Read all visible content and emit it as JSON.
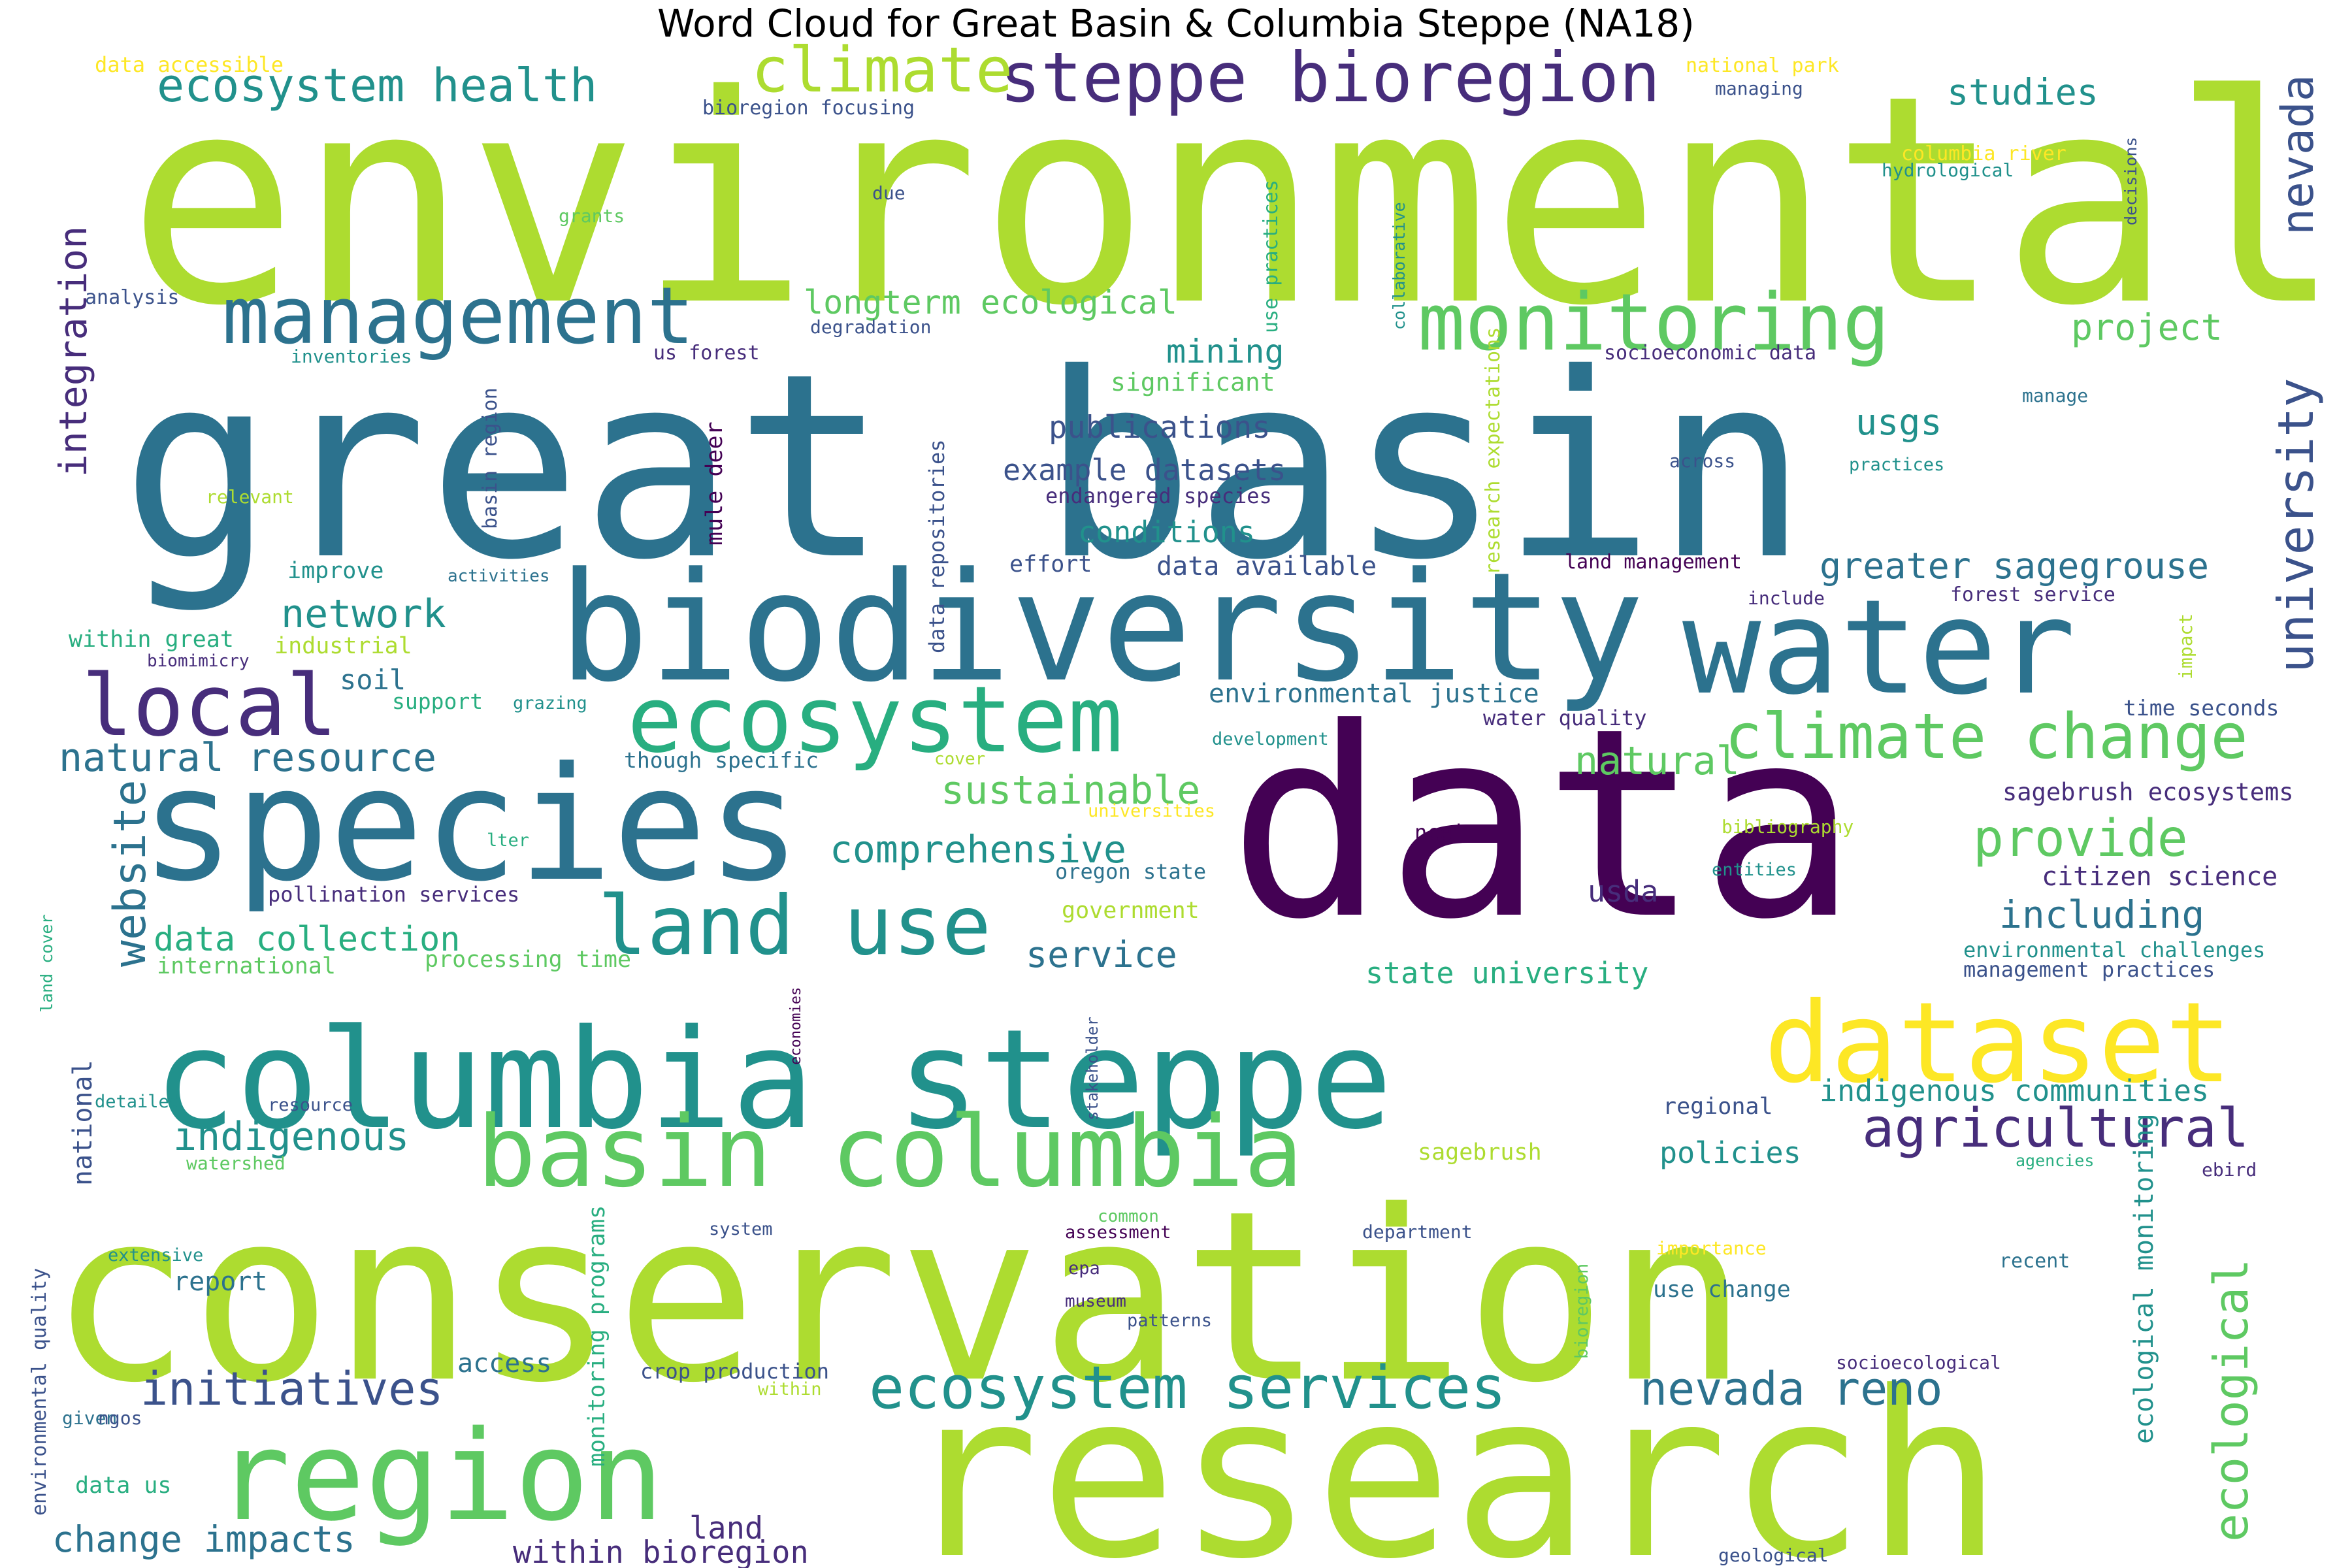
{
  "title": "Word Cloud for Great Basin & Columbia Steppe (NA18)",
  "palette": [
    "#440154",
    "#472d7b",
    "#3b528b",
    "#2c728e",
    "#21918c",
    "#28ae80",
    "#5ec962",
    "#addc30",
    "#fde725"
  ],
  "words": [
    {
      "text": "environmental",
      "c": 7
    },
    {
      "text": "great basin",
      "c": 3
    },
    {
      "text": "data",
      "c": 0
    },
    {
      "text": "conservation",
      "c": 7
    },
    {
      "text": "research",
      "c": 7
    },
    {
      "text": "biodiversity",
      "c": 3
    },
    {
      "text": "species",
      "c": 3
    },
    {
      "text": "columbia steppe",
      "c": 4
    },
    {
      "text": "water",
      "c": 3
    },
    {
      "text": "region",
      "c": 6
    },
    {
      "text": "dataset",
      "c": 8
    },
    {
      "text": "ecosystem",
      "c": 5
    },
    {
      "text": "basin columbia",
      "c": 6
    },
    {
      "text": "management",
      "c": 3
    },
    {
      "text": "land use",
      "c": 4
    },
    {
      "text": "monitoring",
      "c": 6
    },
    {
      "text": "steppe bioregion",
      "c": 1
    },
    {
      "text": "climate change",
      "c": 6
    },
    {
      "text": "local",
      "c": 1
    },
    {
      "text": "ecosystem services",
      "c": 4
    },
    {
      "text": "climate",
      "c": 7
    },
    {
      "text": "ecosystem health",
      "c": 4
    },
    {
      "text": "agricultural",
      "c": 1
    },
    {
      "text": "university",
      "c": 2
    },
    {
      "text": "nevada",
      "c": 2
    },
    {
      "text": "ecological",
      "c": 6
    },
    {
      "text": "initiatives",
      "c": 2
    },
    {
      "text": "website",
      "c": 3
    },
    {
      "text": "nevada reno",
      "c": 3
    },
    {
      "text": "provide",
      "c": 6
    },
    {
      "text": "integration",
      "c": 1
    },
    {
      "text": "natural resource",
      "c": 3
    },
    {
      "text": "indigenous",
      "c": 4
    },
    {
      "text": "sustainable",
      "c": 6
    },
    {
      "text": "comprehensive",
      "c": 4
    },
    {
      "text": "network",
      "c": 4
    },
    {
      "text": "longterm ecological",
      "c": 6
    },
    {
      "text": "natural",
      "c": 6
    },
    {
      "text": "greater sagegrouse",
      "c": 3
    },
    {
      "text": "change impacts",
      "c": 3
    },
    {
      "text": "including",
      "c": 3
    },
    {
      "text": "studies",
      "c": 4
    },
    {
      "text": "project",
      "c": 6
    },
    {
      "text": "usgs",
      "c": 4
    },
    {
      "text": "publications",
      "c": 2
    },
    {
      "text": "example datasets",
      "c": 2
    },
    {
      "text": "conditions",
      "c": 4
    },
    {
      "text": "indigenous communities",
      "c": 4
    },
    {
      "text": "service",
      "c": 3
    },
    {
      "text": "data collection",
      "c": 5
    },
    {
      "text": "within bioregion",
      "c": 1
    },
    {
      "text": "land",
      "c": 1
    },
    {
      "text": "report",
      "c": 3
    },
    {
      "text": "mining",
      "c": 4
    },
    {
      "text": "policies",
      "c": 4
    },
    {
      "text": "state university",
      "c": 5
    },
    {
      "text": "ecological monitoring",
      "c": 4
    },
    {
      "text": "environmental justice",
      "c": 3
    },
    {
      "text": "data available",
      "c": 2
    },
    {
      "text": "citizen science",
      "c": 1
    },
    {
      "text": "sagebrush ecosystems",
      "c": 1
    },
    {
      "text": "national",
      "c": 2
    },
    {
      "text": "soil",
      "c": 3
    },
    {
      "text": "usda",
      "c": 1
    },
    {
      "text": "access",
      "c": 3
    },
    {
      "text": "significant",
      "c": 6
    },
    {
      "text": "effort",
      "c": 2
    },
    {
      "text": "mule deer",
      "c": 0
    },
    {
      "text": "processing time",
      "c": 6
    },
    {
      "text": "international",
      "c": 6
    },
    {
      "text": "pollination services",
      "c": 1
    },
    {
      "text": "endangered species",
      "c": 1
    },
    {
      "text": "though specific",
      "c": 3
    },
    {
      "text": "regional",
      "c": 2
    },
    {
      "text": "crop production",
      "c": 2
    },
    {
      "text": "use change",
      "c": 3
    },
    {
      "text": "sagebrush",
      "c": 7
    },
    {
      "text": "data us",
      "c": 5
    },
    {
      "text": "monitoring programs",
      "c": 5
    },
    {
      "text": "environmental quality",
      "c": 2
    },
    {
      "text": "government",
      "c": 7
    },
    {
      "text": "oregon state",
      "c": 3
    },
    {
      "text": "ncei",
      "c": 0
    },
    {
      "text": "water quality",
      "c": 1
    },
    {
      "text": "time seconds",
      "c": 2
    },
    {
      "text": "data repositories",
      "c": 2
    },
    {
      "text": "use practices",
      "c": 5
    },
    {
      "text": "research expectations",
      "c": 7
    },
    {
      "text": "environmental challenges",
      "c": 4
    },
    {
      "text": "management practices",
      "c": 2
    },
    {
      "text": "basin region",
      "c": 2
    },
    {
      "text": "land management",
      "c": 0
    },
    {
      "text": "forest service",
      "c": 1
    },
    {
      "text": "socioeconomic data",
      "c": 1
    },
    {
      "text": "us forest",
      "c": 1
    },
    {
      "text": "support",
      "c": 5
    },
    {
      "text": "improve",
      "c": 4
    },
    {
      "text": "industrial",
      "c": 7
    },
    {
      "text": "within great",
      "c": 5
    },
    {
      "text": "data accessible",
      "c": 8
    },
    {
      "text": "bioregion focusing",
      "c": 2
    },
    {
      "text": "national park",
      "c": 8
    },
    {
      "text": "managing",
      "c": 2
    },
    {
      "text": "columbia river",
      "c": 8
    },
    {
      "text": "hydrological",
      "c": 4
    },
    {
      "text": "decisions",
      "c": 2
    },
    {
      "text": "due",
      "c": 2
    },
    {
      "text": "grants",
      "c": 6
    },
    {
      "text": "analysis",
      "c": 2
    },
    {
      "text": "degradation",
      "c": 2
    },
    {
      "text": "inventories",
      "c": 4
    },
    {
      "text": "collaborative",
      "c": 4
    },
    {
      "text": "relevant",
      "c": 7
    },
    {
      "text": "activities",
      "c": 3
    },
    {
      "text": "biomimicry",
      "c": 1
    },
    {
      "text": "grazing",
      "c": 4
    },
    {
      "text": "lter",
      "c": 5
    },
    {
      "text": "land cover",
      "c": 5
    },
    {
      "text": "detailed",
      "c": 4
    },
    {
      "text": "resource",
      "c": 2
    },
    {
      "text": "watershed",
      "c": 6
    },
    {
      "text": "extensive",
      "c": 4
    },
    {
      "text": "given",
      "c": 3
    },
    {
      "text": "ngos",
      "c": 2
    },
    {
      "text": "system",
      "c": 2
    },
    {
      "text": "common",
      "c": 6
    },
    {
      "text": "assessment",
      "c": 0
    },
    {
      "text": "epa",
      "c": 1
    },
    {
      "text": "museum",
      "c": 1
    },
    {
      "text": "patterns",
      "c": 2
    },
    {
      "text": "within",
      "c": 7
    },
    {
      "text": "economies",
      "c": 0
    },
    {
      "text": "stakeholder",
      "c": 2
    },
    {
      "text": "department",
      "c": 2
    },
    {
      "text": "bioregion",
      "c": 6
    },
    {
      "text": "importance",
      "c": 8
    },
    {
      "text": "recent",
      "c": 3
    },
    {
      "text": "socioecological",
      "c": 1
    },
    {
      "text": "geological",
      "c": 2
    },
    {
      "text": "agencies",
      "c": 5
    },
    {
      "text": "ebird",
      "c": 1
    },
    {
      "text": "universities",
      "c": 8
    },
    {
      "text": "cover",
      "c": 7
    },
    {
      "text": "development",
      "c": 4
    },
    {
      "text": "bibliography",
      "c": 7
    },
    {
      "text": "entities",
      "c": 4
    },
    {
      "text": "manage",
      "c": 3
    },
    {
      "text": "across",
      "c": 2
    },
    {
      "text": "practices",
      "c": 4
    },
    {
      "text": "include",
      "c": 1
    },
    {
      "text": "impact",
      "c": 7
    }
  ]
}
